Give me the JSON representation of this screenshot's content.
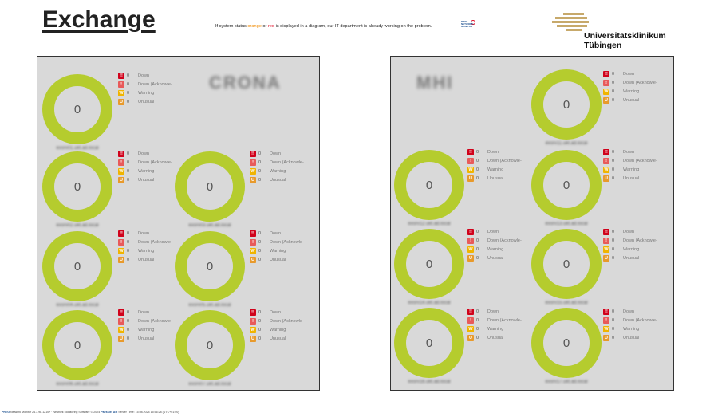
{
  "header": {
    "title": "Exchange",
    "notice_pre": "If system status ",
    "notice_orange": "orange",
    "notice_mid": " or ",
    "notice_red": "red",
    "notice_post": " is displayed in a diagram, our IT department is already working on the problem.",
    "prtg_logo_text": "PRTG NETWORK MONITOR",
    "institution_line1": "Universitätsklinikum",
    "institution_line2": "Tübingen"
  },
  "colors": {
    "gauge": "#b5cc2e",
    "down": "#d0021b",
    "down_ack": "#e85a5a",
    "warning": "#f0b400",
    "unusual": "#e89a2c"
  },
  "legend_labels": {
    "down": "Down",
    "down_ack": "Down (Acknowle-",
    "warning": "Warning",
    "unusual": "Unusual"
  },
  "badges": {
    "down": "!!",
    "down_ack": "!",
    "warning": "W",
    "unusual": "U"
  },
  "panels": {
    "left": {
      "site_label": "CRONA",
      "gauges": [
        {
          "value": "0",
          "label": "exsrv01.ukt.ad.local",
          "counts": {
            "down": "0",
            "down_ack": "0",
            "warning": "0",
            "unusual": "0"
          }
        },
        {
          "value": "0",
          "label": "exsrv02.ukt.ad.local",
          "counts": {
            "down": "0",
            "down_ack": "0",
            "warning": "0",
            "unusual": "0"
          }
        },
        {
          "value": "0",
          "label": "exsrv03.ukt.ad.local",
          "counts": {
            "down": "0",
            "down_ack": "0",
            "warning": "0",
            "unusual": "0"
          }
        },
        {
          "value": "0",
          "label": "exsrv04.ukt.ad.local",
          "counts": {
            "down": "0",
            "down_ack": "0",
            "warning": "0",
            "unusual": "0"
          }
        },
        {
          "value": "0",
          "label": "exsrv05.ukt.ad.local",
          "counts": {
            "down": "0",
            "down_ack": "0",
            "warning": "0",
            "unusual": "0"
          }
        },
        {
          "value": "0",
          "label": "exsrv06.ukt.ad.local",
          "counts": {
            "down": "0",
            "down_ack": "0",
            "warning": "0",
            "unusual": "0"
          }
        },
        {
          "value": "0",
          "label": "exsrv07.ukt.ad.local",
          "counts": {
            "down": "0",
            "down_ack": "0",
            "warning": "0",
            "unusual": "0"
          }
        }
      ]
    },
    "right": {
      "site_label": "MHI",
      "gauges": [
        {
          "value": "0",
          "label": "exsrv11.ukt.ad.local",
          "counts": {
            "down": "0",
            "down_ack": "0",
            "warning": "0",
            "unusual": "0"
          }
        },
        {
          "value": "0",
          "label": "exsrv12.ukt.ad.local",
          "counts": {
            "down": "0",
            "down_ack": "0",
            "warning": "0",
            "unusual": "0"
          }
        },
        {
          "value": "0",
          "label": "exsrv13.ukt.ad.local",
          "counts": {
            "down": "0",
            "down_ack": "0",
            "warning": "0",
            "unusual": "0"
          }
        },
        {
          "value": "0",
          "label": "exsrv14.ukt.ad.local",
          "counts": {
            "down": "0",
            "down_ack": "0",
            "warning": "0",
            "unusual": "0"
          }
        },
        {
          "value": "0",
          "label": "exsrv15.ukt.ad.local",
          "counts": {
            "down": "0",
            "down_ack": "0",
            "warning": "0",
            "unusual": "0"
          }
        },
        {
          "value": "0",
          "label": "exsrv16.ukt.ad.local",
          "counts": {
            "down": "0",
            "down_ack": "0",
            "warning": "0",
            "unusual": "0"
          }
        },
        {
          "value": "0",
          "label": "exsrv17.ukt.ad.local",
          "counts": {
            "down": "0",
            "down_ack": "0",
            "warning": "0",
            "unusual": "0"
          }
        }
      ]
    }
  },
  "footer": {
    "brand": "PRTG",
    "text": " Network Monitor 24.3.98.1210+ · Network Monitoring Software © 2024 ",
    "company": "Paessler AG",
    "server_time": " Server Time: 15.08.2024 15:56:28 (UTC+01:00)"
  }
}
